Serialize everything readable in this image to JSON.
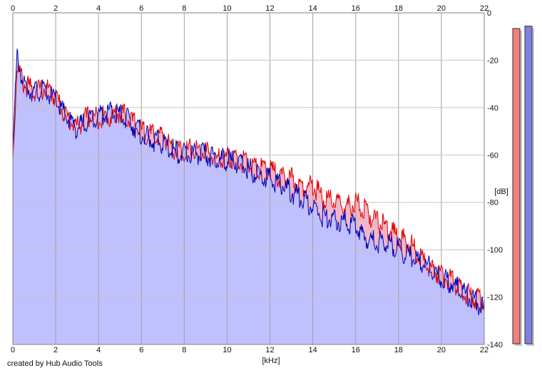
{
  "credit": "created by Hub Audio Tools",
  "colors": {
    "left_channel": "#e00000",
    "right_channel": "#0000b4",
    "fill": "#c0c0ff",
    "left_fill": "#f2b6c6",
    "grid": "#a0a0a0",
    "meter_left": "#f08080",
    "meter_right": "#8080e0"
  },
  "chart_data": {
    "type": "area",
    "xlabel": "[kHz]",
    "ylabel": "[dB]",
    "xlim": [
      0,
      22
    ],
    "ylim": [
      -140,
      0
    ],
    "x_ticks": [
      0,
      2,
      4,
      6,
      8,
      10,
      12,
      14,
      16,
      18,
      20,
      22
    ],
    "y_ticks": [
      0,
      -20,
      -40,
      -60,
      -80,
      -100,
      -120,
      -140
    ],
    "grid": true,
    "series": [
      {
        "channel": "left",
        "color": "#e00000",
        "x": [
          0.0,
          0.2,
          0.5,
          1.0,
          1.5,
          2.0,
          2.5,
          3.0,
          3.5,
          4.0,
          4.5,
          5.0,
          5.5,
          6.0,
          6.5,
          7.0,
          7.5,
          8.0,
          8.5,
          9.0,
          9.5,
          10.0,
          10.5,
          11.0,
          11.5,
          12.0,
          12.5,
          13.0,
          13.5,
          14.0,
          14.5,
          15.0,
          15.5,
          16.0,
          16.5,
          17.0,
          17.5,
          18.0,
          18.5,
          19.0,
          19.5,
          20.0,
          20.5,
          21.0,
          21.5,
          22.0
        ],
        "values": [
          -62,
          -22,
          -30,
          -33,
          -32,
          -35,
          -44,
          -48,
          -44,
          -44,
          -44,
          -42,
          -45,
          -50,
          -52,
          -52,
          -57,
          -58,
          -58,
          -59,
          -62,
          -61,
          -62,
          -64,
          -66,
          -66,
          -70,
          -70,
          -73,
          -73,
          -78,
          -80,
          -82,
          -80,
          -84,
          -88,
          -91,
          -95,
          -97,
          -103,
          -108,
          -111,
          -113,
          -118,
          -120,
          -122
        ]
      },
      {
        "channel": "right",
        "color": "#0000b4",
        "x": [
          0.0,
          0.2,
          0.5,
          1.0,
          1.5,
          2.0,
          2.5,
          3.0,
          3.5,
          4.0,
          4.5,
          5.0,
          5.5,
          6.0,
          6.5,
          7.0,
          7.5,
          8.0,
          8.5,
          9.0,
          9.5,
          10.0,
          10.5,
          11.0,
          11.5,
          12.0,
          12.5,
          13.0,
          13.5,
          14.0,
          14.5,
          15.0,
          15.5,
          16.0,
          16.5,
          17.0,
          17.5,
          18.0,
          18.5,
          19.0,
          19.5,
          20.0,
          20.5,
          21.0,
          21.5,
          22.0
        ],
        "values": [
          -58,
          -18,
          -31,
          -33,
          -33,
          -37,
          -44,
          -49,
          -45,
          -43,
          -42,
          -43,
          -46,
          -51,
          -54,
          -55,
          -58,
          -60,
          -59,
          -60,
          -62,
          -62,
          -63,
          -66,
          -68,
          -70,
          -72,
          -76,
          -78,
          -82,
          -86,
          -88,
          -88,
          -90,
          -95,
          -97,
          -97,
          -100,
          -103,
          -105,
          -108,
          -112,
          -114,
          -118,
          -121,
          -125
        ]
      }
    ]
  },
  "meters": {
    "left_level_db": -3,
    "right_level_db": -2
  }
}
